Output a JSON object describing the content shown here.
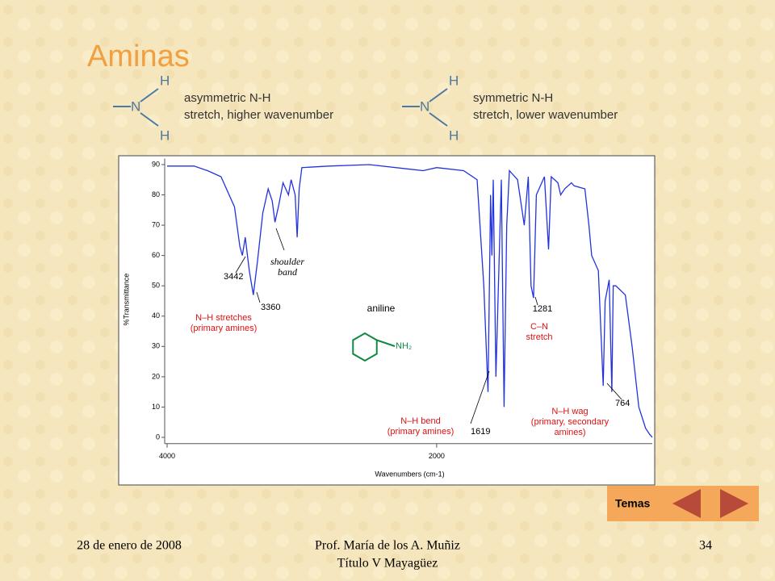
{
  "header": {
    "title": "Aminas"
  },
  "diagrams": [
    {
      "atoms": [
        "H",
        "N",
        "H"
      ],
      "lines": [
        "asymmetric N-H",
        "stretch, higher wavenumber"
      ]
    },
    {
      "atoms": [
        "H",
        "N",
        "H"
      ],
      "lines": [
        "symmetric N-H",
        "stretch, lower wavenumber"
      ]
    }
  ],
  "chart_data": {
    "type": "line",
    "y_label": "%Transmittance",
    "x_label": "Wavenumbers (cm-1)",
    "color": "#2233dd",
    "xlim": [
      4000,
      400
    ],
    "ylim": [
      -1,
      92
    ],
    "xticks": [
      4000,
      2000
    ],
    "yticks": [
      0,
      10,
      20,
      30,
      40,
      50,
      60,
      70,
      80,
      90
    ],
    "x": [
      4000,
      3800,
      3700,
      3600,
      3500,
      3460,
      3442,
      3420,
      3390,
      3360,
      3330,
      3290,
      3250,
      3220,
      3200,
      3170,
      3140,
      3100,
      3080,
      3050,
      3035,
      3020,
      3000,
      2800,
      2500,
      2100,
      2000,
      1800,
      1700,
      1650,
      1619,
      1600,
      1590,
      1580,
      1560,
      1520,
      1500,
      1480,
      1460,
      1400,
      1350,
      1320,
      1300,
      1281,
      1260,
      1200,
      1170,
      1150,
      1100,
      1080,
      1050,
      1000,
      980,
      900,
      870,
      850,
      800,
      764,
      750,
      720,
      700,
      690,
      670,
      600,
      550,
      500,
      450,
      420,
      400
    ],
    "values": [
      89.5,
      89.5,
      88,
      86,
      76,
      63,
      60,
      66,
      55,
      47,
      58,
      74,
      82,
      78,
      71,
      77,
      84,
      80,
      85,
      80,
      66,
      82,
      89,
      89.5,
      90,
      88,
      89,
      88,
      85,
      50,
      15,
      80,
      60,
      85,
      20,
      85,
      10,
      70,
      88,
      85,
      70,
      86,
      50,
      46,
      80,
      86,
      62,
      86,
      84,
      80,
      82,
      84,
      83,
      82,
      70,
      60,
      55,
      17,
      45,
      52,
      15,
      50,
      50,
      47,
      30,
      10,
      3,
      1,
      0
    ],
    "annotations": [
      {
        "lines": [
          "3442"
        ],
        "color": "#000000"
      },
      {
        "lines": [
          "3360"
        ],
        "color": "#000000"
      },
      {
        "lines": [
          "shoulder",
          "band"
        ],
        "color": "#000000"
      },
      {
        "lines": [
          "N–H stretches",
          "(primary amines)"
        ],
        "color": "#dd1111"
      },
      {
        "lines": [
          "aniline"
        ],
        "color": "#000000"
      },
      {
        "lines": [
          "NH₂"
        ],
        "color": "#118844"
      },
      {
        "lines": [
          "1281"
        ],
        "color": "#000000"
      },
      {
        "lines": [
          "C–N",
          "stretch"
        ],
        "color": "#dd1111"
      },
      {
        "lines": [
          "N–H bend",
          "(primary amines)"
        ],
        "color": "#dd1111"
      },
      {
        "lines": [
          "1619"
        ],
        "color": "#000000"
      },
      {
        "lines": [
          "N–H wag",
          "(primary, secondary",
          "amines)"
        ],
        "color": "#dd1111"
      },
      {
        "lines": [
          "764"
        ],
        "color": "#000000"
      }
    ]
  },
  "nav": {
    "label": "Temas"
  },
  "footer": {
    "date": "28 de enero de 2008",
    "author": [
      "Prof. María de los A. Muñiz",
      "Título V Mayagüez"
    ],
    "page": "34"
  }
}
